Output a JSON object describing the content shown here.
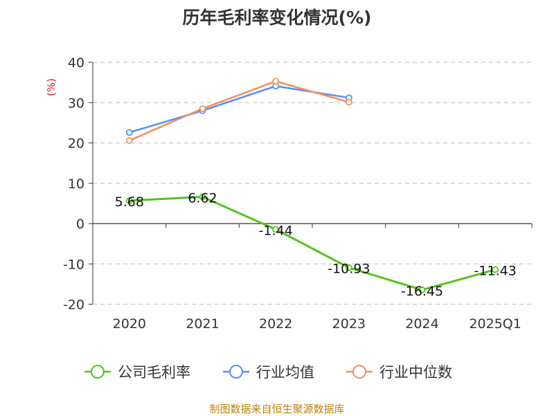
{
  "chart_data": {
    "type": "line",
    "title": "历年毛利率变化情况(%)",
    "ylabel": "(%)",
    "categories": [
      "2020",
      "2021",
      "2022",
      "2023",
      "2024",
      "2025Q1"
    ],
    "yticks": [
      "40",
      "30",
      "20",
      "10",
      "0",
      "-10",
      "-20"
    ],
    "ylim": [
      -20,
      40
    ],
    "grid": true,
    "legend_position": "bottom",
    "series": [
      {
        "name": "公司毛利率",
        "color": "#52c41a",
        "values": [
          5.68,
          6.62,
          -1.44,
          -10.93,
          -16.45,
          -11.43
        ],
        "labels": [
          "5.68",
          "6.62",
          "-1.44",
          "-10.93",
          "-16.45",
          "-11.43"
        ]
      },
      {
        "name": "行业均值",
        "color": "#5b8ff9",
        "values": [
          22.6,
          28.0,
          34.1,
          31.2,
          null,
          null
        ]
      },
      {
        "name": "行业中位数",
        "color": "#f4915b",
        "values": [
          20.6,
          28.5,
          35.3,
          30.1,
          null,
          null
        ]
      }
    ],
    "source": "制图数据来自恒生聚源数据库"
  }
}
